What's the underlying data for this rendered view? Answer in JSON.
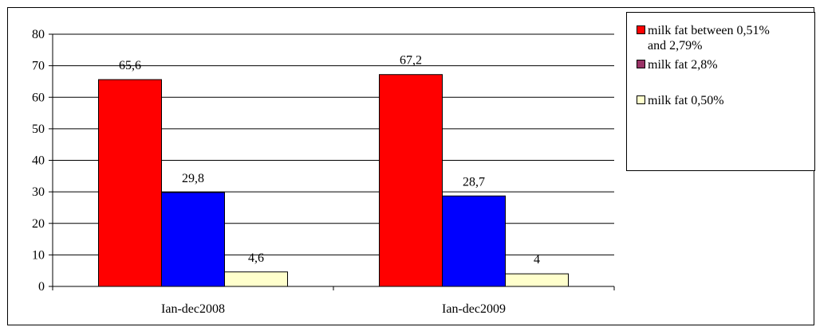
{
  "chart_data": {
    "type": "bar",
    "categories": [
      "Ian-dec2008",
      "Ian-dec2009"
    ],
    "series": [
      {
        "name": "milk fat between 0,51% and 2,79%",
        "color": "#ff0000",
        "values": [
          65.6,
          67.2
        ],
        "labels": [
          "65,6",
          "67,2"
        ]
      },
      {
        "name": "milk fat 2,8%",
        "color": "#0000ff",
        "legend_color": "#993366",
        "values": [
          29.8,
          28.7
        ],
        "labels": [
          "29,8",
          "28,7"
        ]
      },
      {
        "name": "milk fat 0,50%",
        "color": "#ffffcc",
        "values": [
          4.6,
          4
        ],
        "labels": [
          "4,6",
          "4"
        ]
      }
    ],
    "ylim": [
      0,
      80
    ],
    "yticks": [
      "0",
      "10",
      "20",
      "30",
      "40",
      "50",
      "60",
      "70",
      "80"
    ],
    "grid": true,
    "legend": "right",
    "title": "",
    "xlabel": "",
    "ylabel": ""
  },
  "legend": {
    "item1_line1": "milk fat between 0,51%",
    "item1_line2": "and 2,79%",
    "item2": "milk fat 2,8%",
    "item3": "milk fat 0,50%"
  }
}
